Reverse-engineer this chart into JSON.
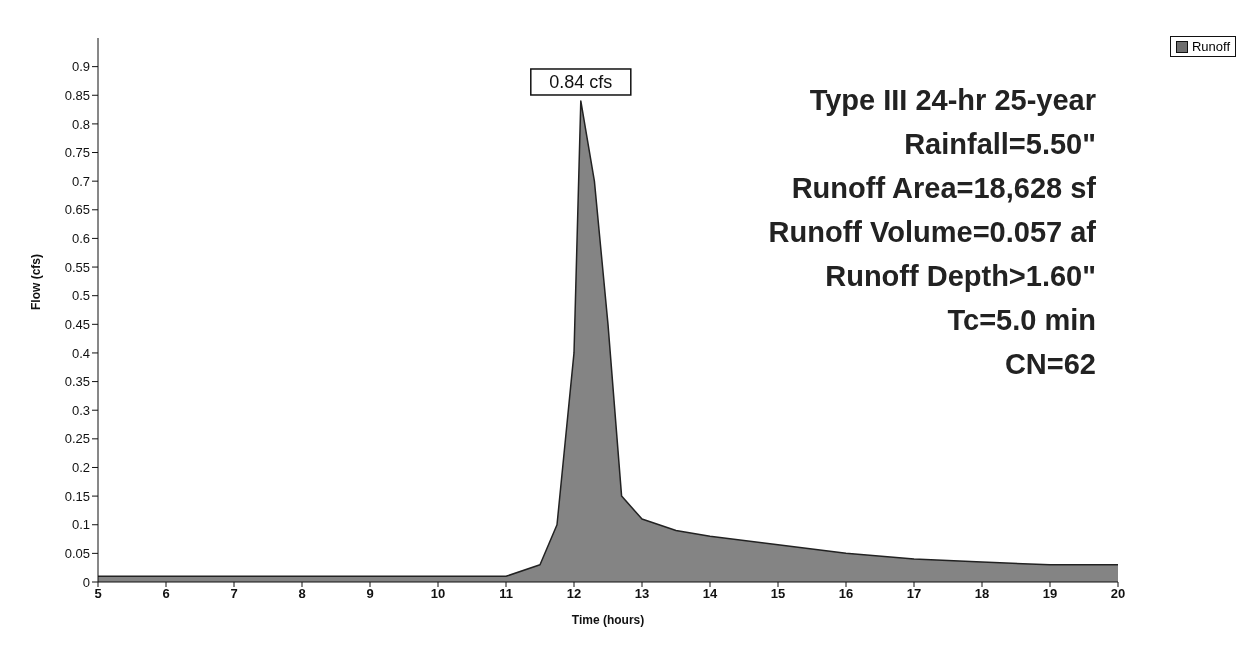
{
  "chart_data": {
    "type": "area",
    "xlabel": "Time (hours)",
    "ylabel": "Flow (cfs)",
    "x": [
      5,
      6,
      7,
      8,
      9,
      10,
      11,
      11.5,
      11.75,
      12,
      12.1,
      12.3,
      12.5,
      12.7,
      13,
      13.5,
      14,
      15,
      16,
      17,
      18,
      19,
      20
    ],
    "series": [
      {
        "name": "Runoff",
        "color": "#6e6e6e",
        "values": [
          0.01,
          0.01,
          0.01,
          0.01,
          0.01,
          0.01,
          0.01,
          0.03,
          0.1,
          0.4,
          0.84,
          0.7,
          0.45,
          0.15,
          0.11,
          0.09,
          0.08,
          0.065,
          0.05,
          0.04,
          0.035,
          0.03,
          0.03
        ]
      }
    ],
    "xlim": [
      5,
      20
    ],
    "xticks": [
      5,
      6,
      7,
      8,
      9,
      10,
      11,
      12,
      13,
      14,
      15,
      16,
      17,
      18,
      19,
      20
    ],
    "ylim": [
      0,
      0.95
    ],
    "yticks": [
      0,
      0.05,
      0.1,
      0.15,
      0.2,
      0.25,
      0.3,
      0.35,
      0.4,
      0.45,
      0.5,
      0.55,
      0.6,
      0.65,
      0.7,
      0.75,
      0.8,
      0.85,
      0.9
    ],
    "grid": false,
    "legend": "top right",
    "marker": "none",
    "annotations": [
      {
        "text": "0.84 cfs",
        "x": 12.1,
        "y": 0.84
      },
      "Type III 24-hr 25-year",
      "Rainfall=5.50\"",
      "Runoff Area=18,628 sf",
      "Runoff Volume=0.057 af",
      "Runoff Depth>1.60\"",
      "Tc=5.0 min",
      "CN=62"
    ]
  }
}
